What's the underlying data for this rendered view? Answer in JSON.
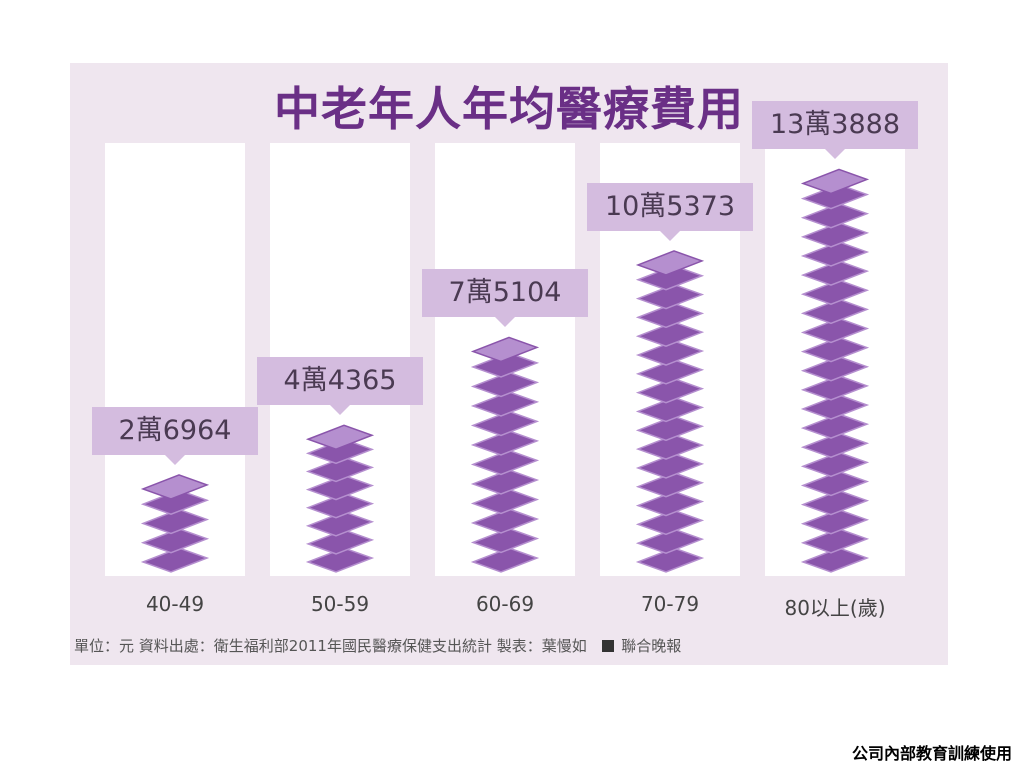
{
  "chart_data": {
    "type": "bar",
    "title": "中老年人年均醫療費用",
    "categories": [
      "40-49",
      "50-59",
      "60-69",
      "70-79",
      "80以上(歲)"
    ],
    "values": [
      26964,
      44365,
      75104,
      105373,
      133888
    ],
    "value_labels": [
      "2萬6964",
      "4萬4365",
      "7萬5104",
      "10萬5373",
      "13萬3888"
    ],
    "unit": "元",
    "ylim": [
      0,
      140000
    ],
    "colors": {
      "panel": "#efe6ef",
      "column": "#ffffff",
      "bill": "#8a55ab",
      "bill_light": "#b58fcf",
      "label_bg": "#d4bcdf",
      "title": "#6a2f86"
    }
  },
  "footnote": {
    "source": "單位：元 資料出處：衛生福利部2011年國民醫療保健支出統計 製表：葉慢如",
    "brand": "聯合晚報"
  },
  "watermark": "公司內部教育訓練使用"
}
